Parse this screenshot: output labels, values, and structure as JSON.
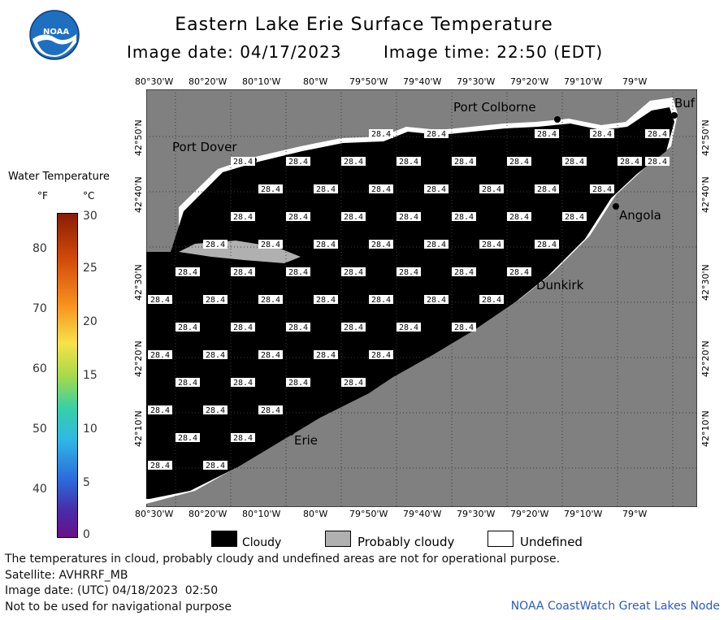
{
  "header": {
    "logo_text": "NOAA",
    "title": "Eastern Lake Erie Surface Temperature",
    "image_date": "Image date: 04/17/2023",
    "image_time": "Image time: 22:50 (EDT)"
  },
  "map": {
    "top_ticks": [
      "80°30'W",
      "80°20'W",
      "80°10'W",
      "80°W",
      "79°50'W",
      "79°40'W",
      "79°30'W",
      "79°20'W",
      "79°10'W",
      "79°W"
    ],
    "bottom_ticks": [
      "80°30'W",
      "80°20'W",
      "80°10'W",
      "80°W",
      "79°50'W",
      "79°40'W",
      "79°30'W",
      "79°20'W",
      "79°10'W",
      "79°W"
    ],
    "left_ticks": [
      "42°50'N",
      "42°40'N",
      "42°30'N",
      "42°20'N",
      "42°10'N"
    ],
    "right_ticks": [
      "42°50'N",
      "42°40'N",
      "42°30'N",
      "42°20'N",
      "42°10'N"
    ],
    "places": [
      "Port Colborne",
      "Port Dover",
      "Buf",
      "Angola",
      "Dunkirk",
      "Erie"
    ],
    "cell_value": "28.4",
    "colors": {
      "land": "#808080",
      "cloud": "#000000",
      "probably_cloudy": "#b0b0b0",
      "undefined": "#ffffff",
      "grid": "#000000"
    }
  },
  "legend": {
    "title": "Water Temperature",
    "unit_f": "°F",
    "unit_c": "°C",
    "f_labels": [
      "80",
      "70",
      "60",
      "50",
      "40"
    ],
    "c_labels": [
      "30",
      "25",
      "20",
      "15",
      "10",
      "5",
      "0"
    ],
    "keys": [
      "Cloudy",
      "Probably cloudy",
      "Undefined"
    ],
    "key_colors": [
      "#000000",
      "#b0b0b0",
      "#ffffff"
    ]
  },
  "footer": {
    "note": "The temperatures in cloud, probably cloudy and undefined areas are not for operational purpose.",
    "satellite": "Satellite: AVHRRF_MB",
    "utc_date": "Image date: (UTC) 04/18/2023  02:50",
    "nav_warning": "Not to be used for navigational purpose",
    "credit": "NOAA CoastWatch Great Lakes Node"
  }
}
